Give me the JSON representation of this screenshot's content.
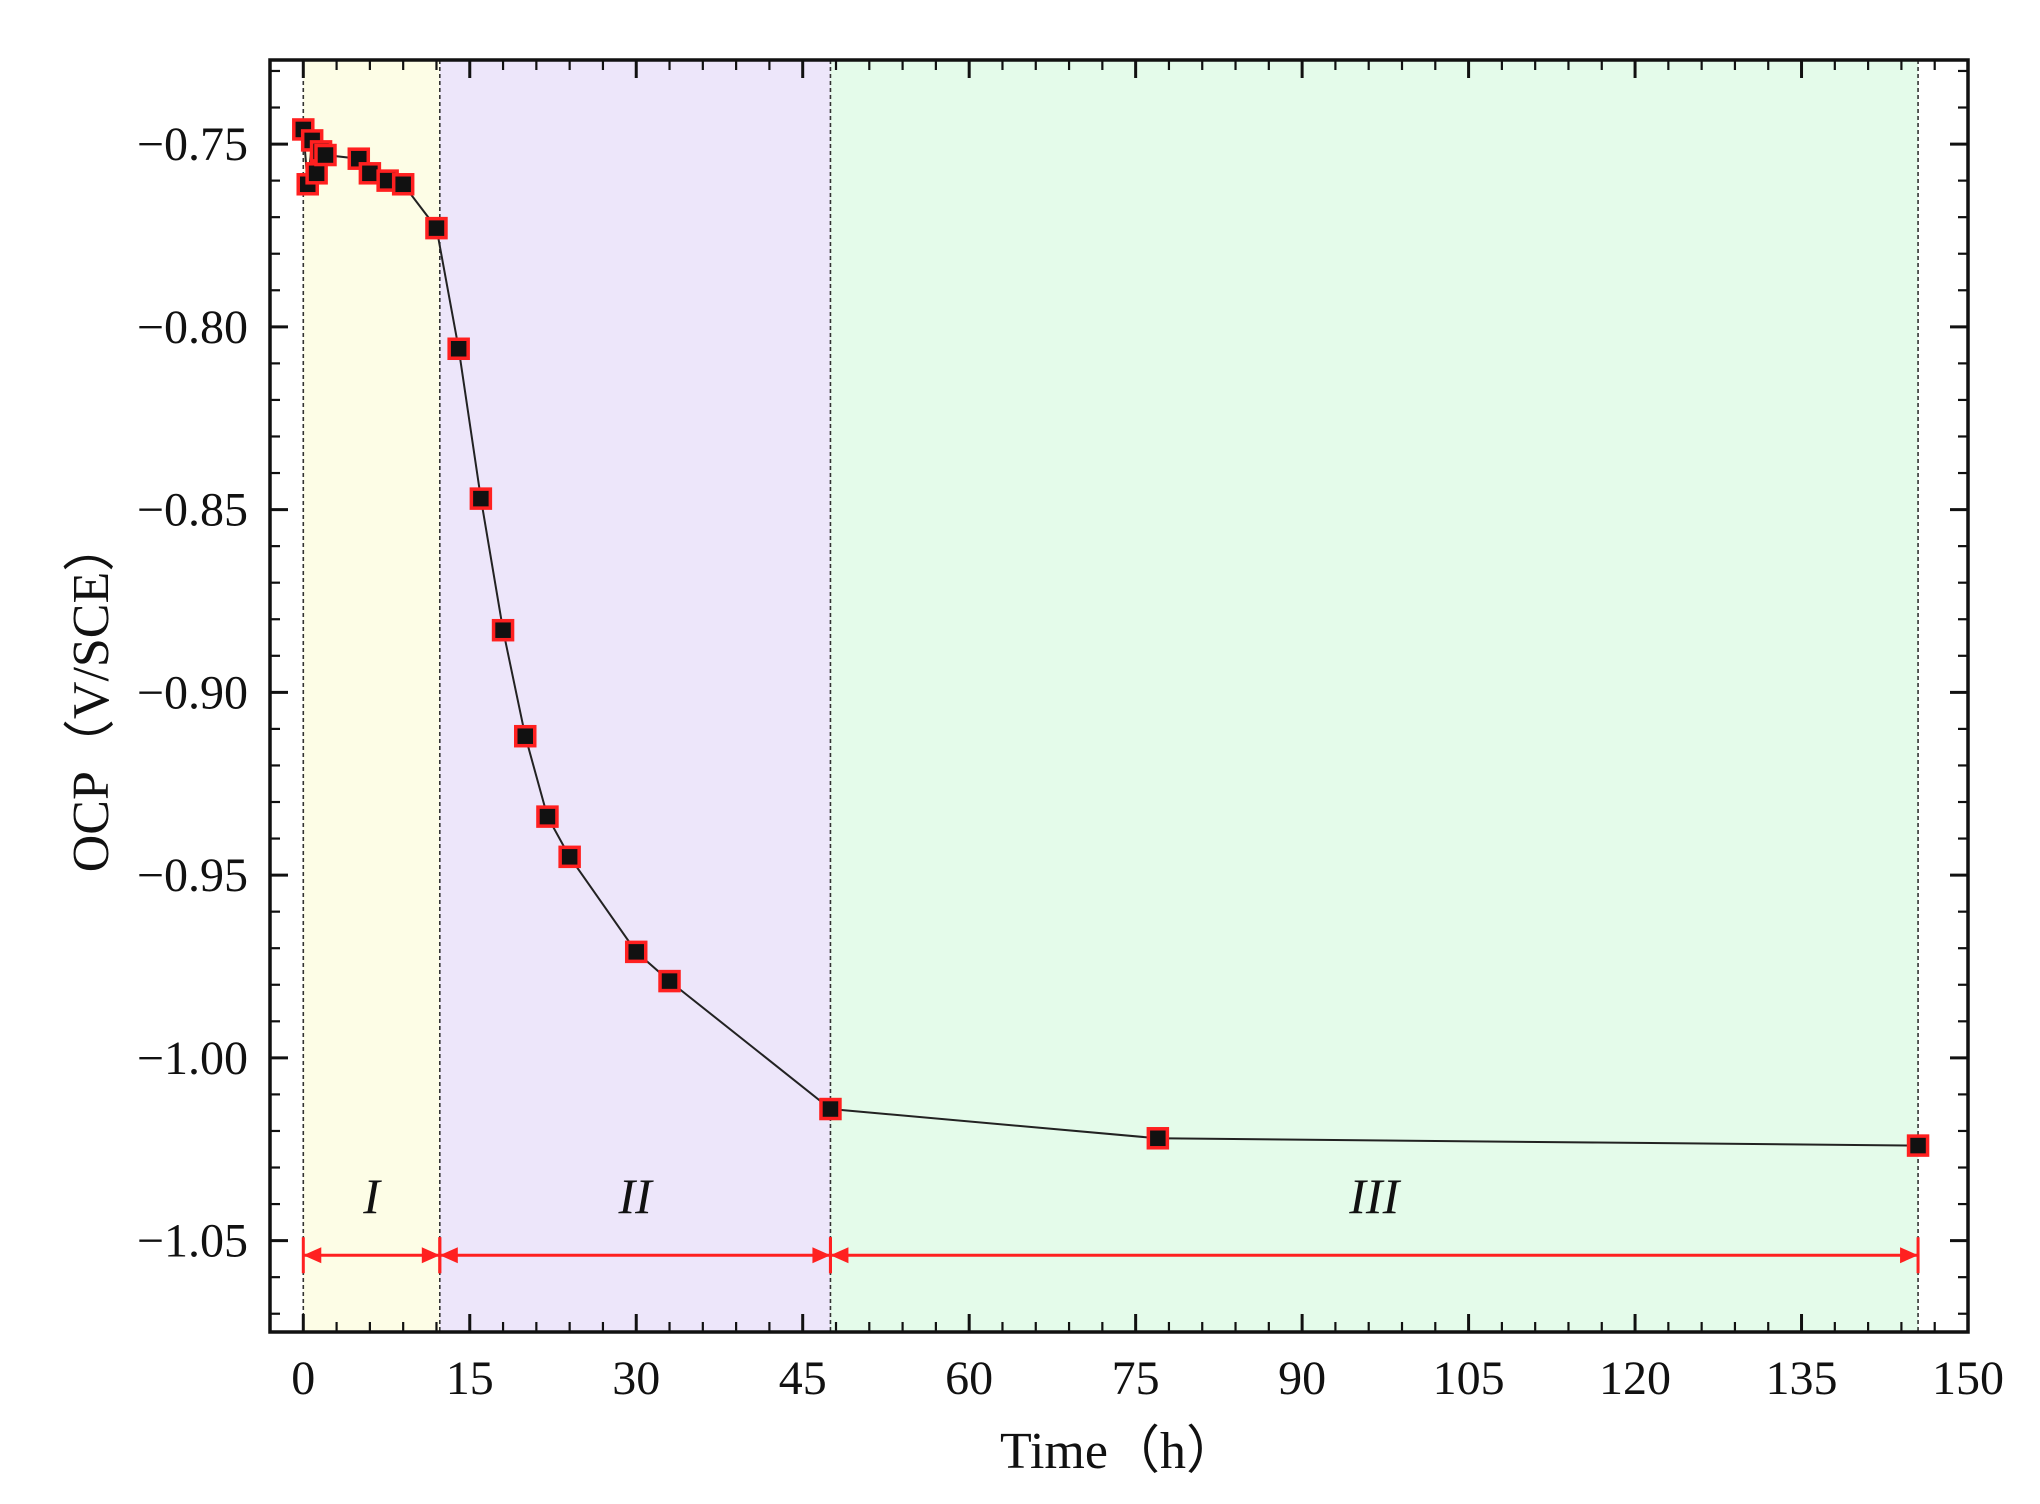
{
  "chart_data": {
    "type": "line",
    "title": "",
    "xlabel": "Time（h）",
    "ylabel": "OCP（V/SCE）",
    "xlim": [
      -3,
      150
    ],
    "ylim": [
      -1.075,
      -0.727
    ],
    "x_ticks": [
      0,
      15,
      30,
      45,
      60,
      75,
      90,
      105,
      120,
      135,
      150
    ],
    "x_tick_labels": [
      "0",
      "15",
      "30",
      "45",
      "60",
      "75",
      "90",
      "105",
      "120",
      "135",
      "150"
    ],
    "y_ticks": [
      -0.75,
      -0.8,
      -0.85,
      -0.9,
      -0.95,
      -1.0,
      -1.05
    ],
    "y_tick_labels": [
      "−0.75",
      "−0.80",
      "−0.85",
      "−0.90",
      "−0.95",
      "−1.00",
      "−1.05"
    ],
    "grid": false,
    "regions": [
      {
        "label": "I",
        "x_start": 0,
        "x_end": 12.3,
        "color": "#fdfde6"
      },
      {
        "label": "II",
        "x_start": 12.3,
        "x_end": 47.5,
        "color": "#ede6fa"
      },
      {
        "label": "III",
        "x_start": 47.5,
        "x_end": 145.5,
        "color": "#e4fbea"
      }
    ],
    "series": [
      {
        "x": [
          0,
          0.4,
          0.8,
          1.2,
          1.6,
          2.0,
          5.0,
          6.0,
          7.6,
          9.0,
          12.0,
          14.0,
          16.0,
          18.0,
          20.0,
          22.0,
          24.0,
          30.0,
          33.0,
          47.5,
          77.0,
          145.5
        ],
        "y": [
          -0.746,
          -0.761,
          -0.749,
          -0.758,
          -0.752,
          -0.753,
          -0.754,
          -0.758,
          -0.76,
          -0.761,
          -0.773,
          -0.806,
          -0.847,
          -0.883,
          -0.912,
          -0.934,
          -0.945,
          -0.971,
          -0.979,
          -1.014,
          -1.022,
          -1.024
        ],
        "line_color": "#222222",
        "marker": "square",
        "marker_fill": "#111111",
        "marker_edge": "#ff2020"
      }
    ],
    "colors": {
      "arrow": "#ff2020",
      "frame": "#111111",
      "divider": "#333333"
    }
  }
}
